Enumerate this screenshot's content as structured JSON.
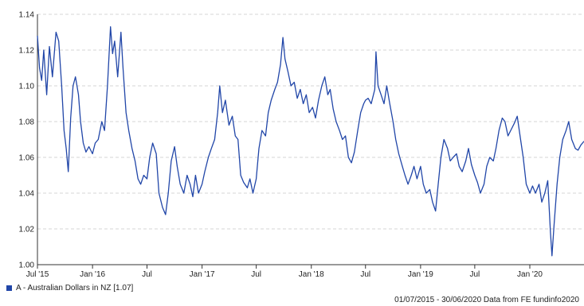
{
  "chart_data": {
    "type": "line",
    "title": "",
    "xlabel": "",
    "ylabel": "",
    "ylim": [
      1.0,
      1.14
    ],
    "y_ticks": [
      "1.00",
      "1.02",
      "1.04",
      "1.06",
      "1.08",
      "1.10",
      "1.12",
      "1.14"
    ],
    "x_ticks": [
      {
        "label": "Jul '15",
        "date": "2015-07-01"
      },
      {
        "label": "Jan '16",
        "date": "2016-01-01"
      },
      {
        "label": "Jul",
        "date": "2016-07-01"
      },
      {
        "label": "Jan '17",
        "date": "2017-01-01"
      },
      {
        "label": "Jul",
        "date": "2017-07-01"
      },
      {
        "label": "Jan '18",
        "date": "2018-01-01"
      },
      {
        "label": "Jul",
        "date": "2018-07-01"
      },
      {
        "label": "Jan '19",
        "date": "2019-01-01"
      },
      {
        "label": "Jul",
        "date": "2019-07-01"
      },
      {
        "label": "Jan '20",
        "date": "2020-01-01"
      }
    ],
    "xlim": [
      "2015-07-01",
      "2020-06-30"
    ],
    "grid": true,
    "legend_position": "bottom-left",
    "series": [
      {
        "name": "A - Australian Dollars in NZ [1.07]",
        "color": "#2146a8",
        "points": [
          [
            "2015-07-01",
            1.128
          ],
          [
            "2015-07-08",
            1.11
          ],
          [
            "2015-07-15",
            1.103
          ],
          [
            "2015-07-22",
            1.12
          ],
          [
            "2015-08-01",
            1.095
          ],
          [
            "2015-08-10",
            1.122
          ],
          [
            "2015-08-20",
            1.105
          ],
          [
            "2015-09-01",
            1.13
          ],
          [
            "2015-09-10",
            1.125
          ],
          [
            "2015-09-20",
            1.1
          ],
          [
            "2015-09-28",
            1.075
          ],
          [
            "2015-10-05",
            1.065
          ],
          [
            "2015-10-12",
            1.052
          ],
          [
            "2015-10-20",
            1.082
          ],
          [
            "2015-10-28",
            1.1
          ],
          [
            "2015-11-05",
            1.105
          ],
          [
            "2015-11-15",
            1.095
          ],
          [
            "2015-11-22",
            1.08
          ],
          [
            "2015-12-01",
            1.068
          ],
          [
            "2015-12-10",
            1.063
          ],
          [
            "2015-12-20",
            1.066
          ],
          [
            "2016-01-01",
            1.062
          ],
          [
            "2016-01-10",
            1.068
          ],
          [
            "2016-01-20",
            1.07
          ],
          [
            "2016-02-01",
            1.08
          ],
          [
            "2016-02-10",
            1.075
          ],
          [
            "2016-02-20",
            1.1
          ],
          [
            "2016-03-01",
            1.133
          ],
          [
            "2016-03-08",
            1.118
          ],
          [
            "2016-03-15",
            1.125
          ],
          [
            "2016-03-25",
            1.105
          ],
          [
            "2016-04-05",
            1.13
          ],
          [
            "2016-04-12",
            1.11
          ],
          [
            "2016-04-22",
            1.085
          ],
          [
            "2016-05-01",
            1.075
          ],
          [
            "2016-05-12",
            1.065
          ],
          [
            "2016-05-22",
            1.058
          ],
          [
            "2016-06-01",
            1.048
          ],
          [
            "2016-06-10",
            1.045
          ],
          [
            "2016-06-20",
            1.05
          ],
          [
            "2016-07-01",
            1.048
          ],
          [
            "2016-07-10",
            1.06
          ],
          [
            "2016-07-20",
            1.068
          ],
          [
            "2016-08-01",
            1.062
          ],
          [
            "2016-08-10",
            1.04
          ],
          [
            "2016-08-22",
            1.032
          ],
          [
            "2016-09-01",
            1.028
          ],
          [
            "2016-09-10",
            1.04
          ],
          [
            "2016-09-20",
            1.058
          ],
          [
            "2016-10-01",
            1.066
          ],
          [
            "2016-10-10",
            1.055
          ],
          [
            "2016-10-20",
            1.045
          ],
          [
            "2016-11-01",
            1.04
          ],
          [
            "2016-11-12",
            1.05
          ],
          [
            "2016-11-22",
            1.045
          ],
          [
            "2016-12-01",
            1.038
          ],
          [
            "2016-12-10",
            1.05
          ],
          [
            "2016-12-20",
            1.04
          ],
          [
            "2017-01-01",
            1.045
          ],
          [
            "2017-01-10",
            1.052
          ],
          [
            "2017-01-22",
            1.06
          ],
          [
            "2017-02-01",
            1.065
          ],
          [
            "2017-02-12",
            1.07
          ],
          [
            "2017-02-22",
            1.085
          ],
          [
            "2017-03-01",
            1.1
          ],
          [
            "2017-03-10",
            1.085
          ],
          [
            "2017-03-20",
            1.092
          ],
          [
            "2017-04-01",
            1.078
          ],
          [
            "2017-04-12",
            1.083
          ],
          [
            "2017-04-22",
            1.072
          ],
          [
            "2017-05-01",
            1.07
          ],
          [
            "2017-05-10",
            1.05
          ],
          [
            "2017-05-20",
            1.046
          ],
          [
            "2017-06-01",
            1.043
          ],
          [
            "2017-06-10",
            1.048
          ],
          [
            "2017-06-20",
            1.04
          ],
          [
            "2017-07-01",
            1.048
          ],
          [
            "2017-07-10",
            1.065
          ],
          [
            "2017-07-20",
            1.075
          ],
          [
            "2017-08-01",
            1.072
          ],
          [
            "2017-08-10",
            1.085
          ],
          [
            "2017-08-20",
            1.092
          ],
          [
            "2017-09-01",
            1.098
          ],
          [
            "2017-09-10",
            1.102
          ],
          [
            "2017-09-20",
            1.112
          ],
          [
            "2017-09-28",
            1.127
          ],
          [
            "2017-10-05",
            1.115
          ],
          [
            "2017-10-15",
            1.108
          ],
          [
            "2017-10-25",
            1.1
          ],
          [
            "2017-11-05",
            1.102
          ],
          [
            "2017-11-15",
            1.093
          ],
          [
            "2017-11-25",
            1.098
          ],
          [
            "2017-12-05",
            1.09
          ],
          [
            "2017-12-15",
            1.095
          ],
          [
            "2017-12-25",
            1.085
          ],
          [
            "2018-01-05",
            1.088
          ],
          [
            "2018-01-15",
            1.082
          ],
          [
            "2018-01-25",
            1.092
          ],
          [
            "2018-02-05",
            1.1
          ],
          [
            "2018-02-15",
            1.105
          ],
          [
            "2018-02-25",
            1.095
          ],
          [
            "2018-03-05",
            1.098
          ],
          [
            "2018-03-15",
            1.087
          ],
          [
            "2018-03-25",
            1.08
          ],
          [
            "2018-04-05",
            1.075
          ],
          [
            "2018-04-15",
            1.07
          ],
          [
            "2018-04-25",
            1.072
          ],
          [
            "2018-05-05",
            1.06
          ],
          [
            "2018-05-15",
            1.057
          ],
          [
            "2018-05-25",
            1.063
          ],
          [
            "2018-06-05",
            1.075
          ],
          [
            "2018-06-15",
            1.085
          ],
          [
            "2018-06-25",
            1.09
          ],
          [
            "2018-07-01",
            1.092
          ],
          [
            "2018-07-10",
            1.093
          ],
          [
            "2018-07-20",
            1.09
          ],
          [
            "2018-08-01",
            1.098
          ],
          [
            "2018-08-05",
            1.119
          ],
          [
            "2018-08-12",
            1.1
          ],
          [
            "2018-08-22",
            1.095
          ],
          [
            "2018-09-01",
            1.09
          ],
          [
            "2018-09-10",
            1.1
          ],
          [
            "2018-09-20",
            1.09
          ],
          [
            "2018-10-01",
            1.08
          ],
          [
            "2018-10-10",
            1.07
          ],
          [
            "2018-10-20",
            1.062
          ],
          [
            "2018-11-01",
            1.055
          ],
          [
            "2018-11-10",
            1.05
          ],
          [
            "2018-11-20",
            1.045
          ],
          [
            "2018-12-01",
            1.05
          ],
          [
            "2018-12-10",
            1.055
          ],
          [
            "2018-12-20",
            1.048
          ],
          [
            "2019-01-01",
            1.055
          ],
          [
            "2019-01-10",
            1.045
          ],
          [
            "2019-01-20",
            1.04
          ],
          [
            "2019-02-01",
            1.042
          ],
          [
            "2019-02-10",
            1.035
          ],
          [
            "2019-02-20",
            1.03
          ],
          [
            "2019-03-01",
            1.045
          ],
          [
            "2019-03-10",
            1.06
          ],
          [
            "2019-03-20",
            1.07
          ],
          [
            "2019-04-01",
            1.065
          ],
          [
            "2019-04-10",
            1.058
          ],
          [
            "2019-04-20",
            1.06
          ],
          [
            "2019-05-01",
            1.062
          ],
          [
            "2019-05-10",
            1.055
          ],
          [
            "2019-05-20",
            1.052
          ],
          [
            "2019-06-01",
            1.058
          ],
          [
            "2019-06-10",
            1.065
          ],
          [
            "2019-06-20",
            1.056
          ],
          [
            "2019-07-01",
            1.05
          ],
          [
            "2019-07-10",
            1.046
          ],
          [
            "2019-07-20",
            1.04
          ],
          [
            "2019-08-01",
            1.045
          ],
          [
            "2019-08-10",
            1.055
          ],
          [
            "2019-08-20",
            1.06
          ],
          [
            "2019-09-01",
            1.058
          ],
          [
            "2019-09-10",
            1.065
          ],
          [
            "2019-09-20",
            1.075
          ],
          [
            "2019-10-01",
            1.082
          ],
          [
            "2019-10-10",
            1.08
          ],
          [
            "2019-10-20",
            1.072
          ],
          [
            "2019-11-01",
            1.076
          ],
          [
            "2019-11-10",
            1.079
          ],
          [
            "2019-11-20",
            1.083
          ],
          [
            "2019-12-01",
            1.07
          ],
          [
            "2019-12-10",
            1.06
          ],
          [
            "2019-12-20",
            1.045
          ],
          [
            "2020-01-01",
            1.04
          ],
          [
            "2020-01-10",
            1.044
          ],
          [
            "2020-01-20",
            1.04
          ],
          [
            "2020-02-01",
            1.045
          ],
          [
            "2020-02-10",
            1.035
          ],
          [
            "2020-02-20",
            1.04
          ],
          [
            "2020-03-01",
            1.047
          ],
          [
            "2020-03-10",
            1.018
          ],
          [
            "2020-03-15",
            1.005
          ],
          [
            "2020-03-22",
            1.022
          ],
          [
            "2020-04-01",
            1.045
          ],
          [
            "2020-04-10",
            1.06
          ],
          [
            "2020-04-20",
            1.07
          ],
          [
            "2020-05-01",
            1.075
          ],
          [
            "2020-05-10",
            1.08
          ],
          [
            "2020-05-20",
            1.07
          ],
          [
            "2020-06-01",
            1.065
          ],
          [
            "2020-06-10",
            1.064
          ],
          [
            "2020-06-20",
            1.067
          ],
          [
            "2020-06-30",
            1.069
          ]
        ]
      }
    ]
  },
  "legend": {
    "label": "A - Australian Dollars in NZ [1.07]",
    "color": "#2146a8"
  },
  "footer": {
    "source_text": "01/07/2015 - 30/06/2020 Data from FE fundinfo2020"
  }
}
